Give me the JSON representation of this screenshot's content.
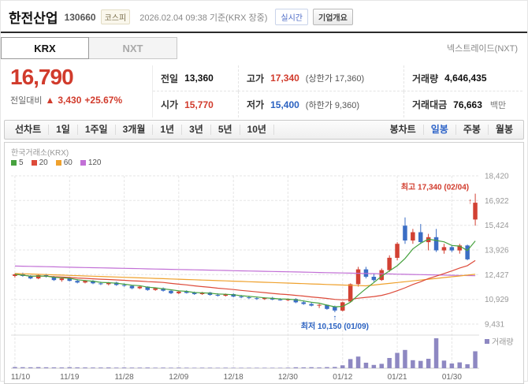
{
  "header": {
    "title": "한전산업",
    "code": "130660",
    "market_badge": "코스피",
    "timestamp": "2026.02.04 09:38 기준(KRX 장중)",
    "realtime_label": "실시간",
    "company_overview_label": "기업개요"
  },
  "tabs": {
    "krx": "KRX",
    "nxt": "NXT",
    "nxt_link": "넥스트레이드(NXT)"
  },
  "price": {
    "current": "16,790",
    "change_label": "전일대비",
    "change_arrow": "▲",
    "change_value": "3,430",
    "change_percent": "+25.67%",
    "table": {
      "prev_label": "전일",
      "prev_value": "13,360",
      "high_label": "고가",
      "high_value": "17,340",
      "high_limit": "(상한가 17,360)",
      "vol_label": "거래량",
      "vol_value": "4,646,435",
      "open_label": "시가",
      "open_value": "15,770",
      "low_label": "저가",
      "low_value": "15,400",
      "low_limit": "(하한가 9,360)",
      "amt_label": "거래대금",
      "amt_value": "76,663",
      "amt_unit": "백만"
    }
  },
  "toolbar": {
    "left": [
      "선차트",
      "1일",
      "1주일",
      "3개월",
      "1년",
      "3년",
      "5년",
      "10년"
    ],
    "right_label": "봉차트",
    "right": [
      {
        "label": "일봉",
        "active": true
      },
      {
        "label": "주봉",
        "active": false
      },
      {
        "label": "월봉",
        "active": false
      }
    ]
  },
  "chart": {
    "exchange_label": "한국거래소(KRX)",
    "legend": [
      {
        "label": "5",
        "color": "#47a23f"
      },
      {
        "label": "20",
        "color": "#dd4a3a"
      },
      {
        "label": "60",
        "color": "#efa12d"
      },
      {
        "label": "120",
        "color": "#c270d6"
      }
    ],
    "volume_label": "거래량"
  },
  "chart_data": {
    "type": "candlestick",
    "y_ticks": [
      18420,
      16922,
      15424,
      13926,
      12427,
      10929,
      9431
    ],
    "x_ticks": [
      {
        "label": "11/10",
        "i": 0
      },
      {
        "label": "11/19",
        "i": 7
      },
      {
        "label": "11/28",
        "i": 14
      },
      {
        "label": "12/09",
        "i": 21
      },
      {
        "label": "12/18",
        "i": 28
      },
      {
        "label": "12/30",
        "i": 35
      },
      {
        "label": "01/12",
        "i": 42
      },
      {
        "label": "01/21",
        "i": 49
      },
      {
        "label": "01/30",
        "i": 56
      }
    ],
    "annotations": {
      "high": "최고 17,340 (02/04)",
      "low": "최저 10,150 (01/09)"
    },
    "candles": [
      [
        12350,
        12500,
        12250,
        12450
      ],
      [
        12450,
        12550,
        12300,
        12350
      ],
      [
        12350,
        12400,
        12150,
        12200
      ],
      [
        12200,
        12450,
        12150,
        12400
      ],
      [
        12400,
        12480,
        12250,
        12300
      ],
      [
        12300,
        12350,
        12050,
        12100
      ],
      [
        12100,
        12250,
        12000,
        12200
      ],
      [
        12200,
        12280,
        12020,
        12050
      ],
      [
        12050,
        12150,
        11900,
        11950
      ],
      [
        11950,
        12100,
        11900,
        12050
      ],
      [
        12050,
        12100,
        11850,
        11900
      ],
      [
        11900,
        12000,
        11800,
        11850
      ],
      [
        11850,
        11980,
        11780,
        11950
      ],
      [
        11950,
        12000,
        11750,
        11800
      ],
      [
        11800,
        11900,
        11700,
        11750
      ],
      [
        11750,
        11800,
        11550,
        11600
      ],
      [
        11600,
        11750,
        11550,
        11700
      ],
      [
        11700,
        11720,
        11450,
        11500
      ],
      [
        11500,
        11650,
        11450,
        11600
      ],
      [
        11600,
        11650,
        11400,
        11450
      ],
      [
        11450,
        11500,
        11250,
        11300
      ],
      [
        11300,
        11450,
        11250,
        11400
      ],
      [
        11400,
        11480,
        11280,
        11320
      ],
      [
        11320,
        11400,
        11200,
        11250
      ],
      [
        11250,
        11380,
        11200,
        11350
      ],
      [
        11350,
        11380,
        11150,
        11200
      ],
      [
        11200,
        11300,
        11100,
        11150
      ],
      [
        11150,
        11280,
        11100,
        11250
      ],
      [
        11250,
        11300,
        11050,
        11100
      ],
      [
        11100,
        11200,
        11000,
        11050
      ],
      [
        11050,
        11150,
        10950,
        11000
      ],
      [
        11000,
        11100,
        10900,
        10950
      ],
      [
        10950,
        11050,
        10900,
        11020
      ],
      [
        11020,
        11080,
        10880,
        10920
      ],
      [
        10920,
        11000,
        10850,
        10880
      ],
      [
        10880,
        10980,
        10820,
        10950
      ],
      [
        10950,
        11000,
        10700,
        10750
      ],
      [
        10750,
        10850,
        10600,
        10650
      ],
      [
        10650,
        10750,
        10500,
        10550
      ],
      [
        10550,
        10650,
        10400,
        10600
      ],
      [
        10600,
        10620,
        10300,
        10350
      ],
      [
        10500,
        10550,
        10150,
        10250
      ],
      [
        10250,
        10800,
        10200,
        10750
      ],
      [
        10800,
        11900,
        10750,
        11850
      ],
      [
        11850,
        12900,
        11700,
        12750
      ],
      [
        12750,
        12900,
        12200,
        12300
      ],
      [
        12300,
        12500,
        12000,
        12100
      ],
      [
        12100,
        12800,
        12050,
        12700
      ],
      [
        12700,
        13600,
        12600,
        13450
      ],
      [
        13450,
        14400,
        13300,
        14300
      ],
      [
        15400,
        15900,
        14300,
        14500
      ],
      [
        14500,
        15200,
        14300,
        15000
      ],
      [
        15000,
        15500,
        14300,
        14400
      ],
      [
        14400,
        14900,
        13900,
        14700
      ],
      [
        14700,
        15200,
        13800,
        13900
      ],
      [
        13900,
        14300,
        13700,
        14100
      ],
      [
        14100,
        14200,
        13800,
        13900
      ],
      [
        13900,
        14300,
        13700,
        14200
      ],
      [
        14200,
        14250,
        13300,
        13360
      ],
      [
        15770,
        17340,
        15400,
        16790
      ]
    ],
    "volumes": [
      320000,
      280000,
      250000,
      300000,
      260000,
      240000,
      220000,
      270000,
      230000,
      210000,
      200000,
      190000,
      220000,
      180000,
      200000,
      180000,
      170000,
      190000,
      160000,
      180000,
      150000,
      170000,
      160000,
      140000,
      160000,
      150000,
      140000,
      150000,
      130000,
      140000,
      130000,
      120000,
      140000,
      130000,
      120000,
      150000,
      260000,
      240000,
      280000,
      220000,
      300000,
      350000,
      800000,
      2500000,
      3200000,
      1500000,
      900000,
      1200000,
      2800000,
      4200000,
      5000000,
      2200000,
      2000000,
      2600000,
      8200000,
      2100000,
      1300000,
      1600000,
      1100000,
      4646435
    ],
    "ma60_keypoints": [
      [
        0,
        12500
      ],
      [
        45,
        11750
      ],
      [
        59,
        12450
      ]
    ],
    "ma120_keypoints": [
      [
        0,
        12950
      ],
      [
        59,
        12360
      ]
    ],
    "colors": {
      "up": "#d24133",
      "down": "#3b6ec5",
      "ma5": "#47a23f",
      "ma20": "#dd4a3a",
      "ma60": "#efa12d",
      "ma120": "#c270d6",
      "volume": "#8e88c2",
      "grid": "#e5e5e5"
    }
  }
}
